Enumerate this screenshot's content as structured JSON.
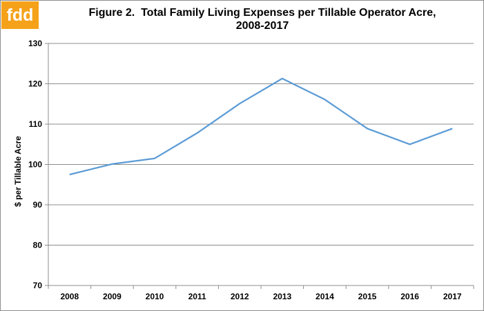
{
  "logo": {
    "text": "fdd"
  },
  "title": {
    "line1": "Figure 2.  Total Family Living Expenses per Tillable Operator Acre,",
    "line2": "2008-2017"
  },
  "chart_data": {
    "type": "line",
    "title": "Figure 2.  Total Family Living Expenses per Tillable Operator Acre, 2008-2017",
    "xlabel": "",
    "ylabel": "$ per Tillable Acre",
    "categories": [
      "2008",
      "2009",
      "2010",
      "2011",
      "2012",
      "2013",
      "2014",
      "2015",
      "2016",
      "2017"
    ],
    "series": [
      {
        "values": [
          97.5,
          100.1,
          101.5,
          107.8,
          115.1,
          121.3,
          116.1,
          108.9,
          105.0,
          108.9
        ]
      }
    ],
    "ylim": [
      70,
      130
    ],
    "yticks": [
      "70",
      "80",
      "90",
      "100",
      "110",
      "120",
      "130"
    ],
    "grid": true,
    "legend": "none",
    "line_color": "#5b9bd5"
  }
}
